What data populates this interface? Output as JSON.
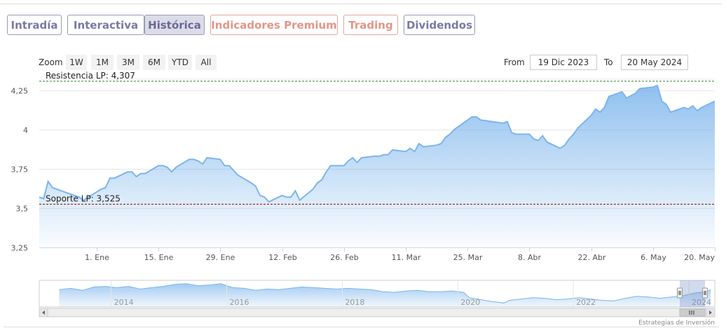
{
  "tabs": [
    {
      "label": "Intradía",
      "style": "normal"
    },
    {
      "label": "Interactiva",
      "style": "normal"
    },
    {
      "label": "Histórica",
      "style": "active"
    },
    {
      "label": "Indicadores Premium",
      "style": "premium"
    },
    {
      "label": "Trading",
      "style": "premium"
    },
    {
      "label": "Dividendos",
      "style": "normal"
    }
  ],
  "zoom": {
    "label": "Zoom",
    "buttons": [
      "1W",
      "1M",
      "3M",
      "6M",
      "YTD",
      "All"
    ]
  },
  "range": {
    "from_label": "From",
    "from_value": "19 Dic 2023",
    "to_label": "To",
    "to_value": "20 May 2024"
  },
  "credit": "Estrategias de Inversión",
  "colors": {
    "line": "#7cb5ec",
    "area_top": "#7cb5ec",
    "resistance": "#2e7d32",
    "support": "#a00000",
    "tab_border": "#9a9ab8",
    "tab_text": "#7a7aa6",
    "premium": "#e3968a",
    "navigator_mask": "#ccd6eb"
  },
  "chart_data": {
    "type": "area",
    "title": "",
    "xlabel": "",
    "ylabel": "",
    "ylim": [
      3.25,
      4.32
    ],
    "xlim": [
      "2023-12-19",
      "2024-05-20"
    ],
    "yticks": [
      3.25,
      3.5,
      3.75,
      4,
      4.25
    ],
    "ytick_labels": [
      "3,25",
      "3,5",
      "3,75",
      "4",
      "4,25"
    ],
    "xticks": [
      {
        "date": "2024-01-01",
        "label": "1. Ene"
      },
      {
        "date": "2024-01-15",
        "label": "15. Ene"
      },
      {
        "date": "2024-01-29",
        "label": "29. Ene"
      },
      {
        "date": "2024-02-12",
        "label": "12. Feb"
      },
      {
        "date": "2024-02-26",
        "label": "26. Feb"
      },
      {
        "date": "2024-03-11",
        "label": "11. Mar"
      },
      {
        "date": "2024-03-25",
        "label": "25. Mar"
      },
      {
        "date": "2024-04-08",
        "label": "8. Abr"
      },
      {
        "date": "2024-04-22",
        "label": "22. Abr"
      },
      {
        "date": "2024-05-06",
        "label": "6. May"
      },
      {
        "date": "2024-05-20",
        "label": "20. May"
      }
    ],
    "reference_lines": [
      {
        "label": "Resistencia LP: 4,307",
        "value": 4.307,
        "style": "dashed-green"
      },
      {
        "label": "Soporte LP: 3,525",
        "value": 3.525,
        "style": "dashed-red"
      }
    ],
    "grid": true,
    "series": [
      {
        "points": [
          [
            "2023-12-19",
            3.57
          ],
          [
            "2023-12-20",
            3.56
          ],
          [
            "2023-12-21",
            3.67
          ],
          [
            "2023-12-22",
            3.63
          ],
          [
            "2023-12-27",
            3.58
          ],
          [
            "2023-12-28",
            3.57
          ],
          [
            "2023-12-29",
            3.55
          ],
          [
            "2024-01-02",
            3.62
          ],
          [
            "2024-01-03",
            3.63
          ],
          [
            "2024-01-04",
            3.69
          ],
          [
            "2024-01-05",
            3.69
          ],
          [
            "2024-01-08",
            3.73
          ],
          [
            "2024-01-09",
            3.73
          ],
          [
            "2024-01-10",
            3.7
          ],
          [
            "2024-01-11",
            3.72
          ],
          [
            "2024-01-12",
            3.72
          ],
          [
            "2024-01-15",
            3.77
          ],
          [
            "2024-01-16",
            3.77
          ],
          [
            "2024-01-17",
            3.76
          ],
          [
            "2024-01-18",
            3.73
          ],
          [
            "2024-01-19",
            3.76
          ],
          [
            "2024-01-22",
            3.81
          ],
          [
            "2024-01-23",
            3.81
          ],
          [
            "2024-01-24",
            3.8
          ],
          [
            "2024-01-25",
            3.78
          ],
          [
            "2024-01-26",
            3.82
          ],
          [
            "2024-01-29",
            3.81
          ],
          [
            "2024-01-30",
            3.77
          ],
          [
            "2024-01-31",
            3.77
          ],
          [
            "2024-02-01",
            3.74
          ],
          [
            "2024-02-02",
            3.71
          ],
          [
            "2024-02-05",
            3.66
          ],
          [
            "2024-02-06",
            3.64
          ],
          [
            "2024-02-07",
            3.58
          ],
          [
            "2024-02-08",
            3.57
          ],
          [
            "2024-02-09",
            3.54
          ],
          [
            "2024-02-12",
            3.58
          ],
          [
            "2024-02-13",
            3.57
          ],
          [
            "2024-02-14",
            3.57
          ],
          [
            "2024-02-15",
            3.61
          ],
          [
            "2024-02-16",
            3.55
          ],
          [
            "2024-02-19",
            3.62
          ],
          [
            "2024-02-20",
            3.66
          ],
          [
            "2024-02-21",
            3.68
          ],
          [
            "2024-02-22",
            3.73
          ],
          [
            "2024-02-23",
            3.77
          ],
          [
            "2024-02-26",
            3.77
          ],
          [
            "2024-02-27",
            3.8
          ],
          [
            "2024-02-28",
            3.82
          ],
          [
            "2024-02-29",
            3.79
          ],
          [
            "2024-03-01",
            3.82
          ],
          [
            "2024-03-04",
            3.83
          ],
          [
            "2024-03-05",
            3.83
          ],
          [
            "2024-03-06",
            3.84
          ],
          [
            "2024-03-07",
            3.84
          ],
          [
            "2024-03-08",
            3.87
          ],
          [
            "2024-03-11",
            3.86
          ],
          [
            "2024-03-12",
            3.88
          ],
          [
            "2024-03-13",
            3.86
          ],
          [
            "2024-03-14",
            3.91
          ],
          [
            "2024-03-15",
            3.89
          ],
          [
            "2024-03-18",
            3.9
          ],
          [
            "2024-03-19",
            3.91
          ],
          [
            "2024-03-20",
            3.95
          ],
          [
            "2024-03-21",
            3.97
          ],
          [
            "2024-03-22",
            4.0
          ],
          [
            "2024-03-25",
            4.06
          ],
          [
            "2024-03-26",
            4.08
          ],
          [
            "2024-03-27",
            4.08
          ],
          [
            "2024-03-28",
            4.06
          ],
          [
            "2024-04-02",
            4.04
          ],
          [
            "2024-04-03",
            4.05
          ],
          [
            "2024-04-04",
            3.98
          ],
          [
            "2024-04-05",
            3.97
          ],
          [
            "2024-04-08",
            3.97
          ],
          [
            "2024-04-09",
            3.94
          ],
          [
            "2024-04-10",
            3.93
          ],
          [
            "2024-04-11",
            3.96
          ],
          [
            "2024-04-12",
            3.92
          ],
          [
            "2024-04-15",
            3.88
          ],
          [
            "2024-04-16",
            3.9
          ],
          [
            "2024-04-17",
            3.94
          ],
          [
            "2024-04-18",
            3.97
          ],
          [
            "2024-04-19",
            4.01
          ],
          [
            "2024-04-22",
            4.09
          ],
          [
            "2024-04-23",
            4.13
          ],
          [
            "2024-04-24",
            4.11
          ],
          [
            "2024-04-25",
            4.14
          ],
          [
            "2024-04-26",
            4.21
          ],
          [
            "2024-04-29",
            4.24
          ],
          [
            "2024-04-30",
            4.2
          ],
          [
            "2024-05-02",
            4.23
          ],
          [
            "2024-05-03",
            4.26
          ],
          [
            "2024-05-06",
            4.27
          ],
          [
            "2024-05-07",
            4.28
          ],
          [
            "2024-05-08",
            4.18
          ],
          [
            "2024-05-09",
            4.16
          ],
          [
            "2024-05-10",
            4.11
          ],
          [
            "2024-05-13",
            4.14
          ],
          [
            "2024-05-14",
            4.13
          ],
          [
            "2024-05-15",
            4.15
          ],
          [
            "2024-05-16",
            4.12
          ],
          [
            "2024-05-17",
            4.14
          ],
          [
            "2024-05-20",
            4.18
          ]
        ]
      }
    ],
    "navigator": {
      "year_labels": [
        "2014",
        "2016",
        "2018",
        "2020",
        "2022",
        "2024"
      ],
      "xlim": [
        2012.9,
        2024.4
      ],
      "ylim": [
        1.5,
        5.5
      ],
      "selected_range": [
        "2023-12-19",
        "2024-05-20"
      ],
      "points": [
        [
          2013.1,
          4.1
        ],
        [
          2013.3,
          4.3
        ],
        [
          2013.5,
          4.0
        ],
        [
          2013.7,
          4.5
        ],
        [
          2013.9,
          4.6
        ],
        [
          2014.1,
          4.4
        ],
        [
          2014.3,
          4.6
        ],
        [
          2014.5,
          4.2
        ],
        [
          2014.7,
          4.4
        ],
        [
          2014.9,
          4.6
        ],
        [
          2015.1,
          4.9
        ],
        [
          2015.3,
          5.0
        ],
        [
          2015.5,
          4.7
        ],
        [
          2015.7,
          4.8
        ],
        [
          2015.9,
          5.0
        ],
        [
          2016.1,
          4.4
        ],
        [
          2016.3,
          4.3
        ],
        [
          2016.5,
          4.0
        ],
        [
          2016.7,
          4.2
        ],
        [
          2016.9,
          4.1
        ],
        [
          2017.1,
          4.3
        ],
        [
          2017.3,
          4.5
        ],
        [
          2017.5,
          4.4
        ],
        [
          2017.7,
          4.3
        ],
        [
          2017.9,
          4.2
        ],
        [
          2018.1,
          4.3
        ],
        [
          2018.3,
          4.2
        ],
        [
          2018.5,
          4.1
        ],
        [
          2018.7,
          3.8
        ],
        [
          2018.9,
          3.7
        ],
        [
          2019.1,
          3.9
        ],
        [
          2019.3,
          4.0
        ],
        [
          2019.5,
          3.8
        ],
        [
          2019.7,
          3.8
        ],
        [
          2019.9,
          3.9
        ],
        [
          2020.1,
          3.7
        ],
        [
          2020.2,
          2.9
        ],
        [
          2020.4,
          2.6
        ],
        [
          2020.6,
          2.3
        ],
        [
          2020.8,
          2.1
        ],
        [
          2020.9,
          2.5
        ],
        [
          2021.1,
          2.7
        ],
        [
          2021.3,
          2.9
        ],
        [
          2021.5,
          2.8
        ],
        [
          2021.7,
          2.6
        ],
        [
          2021.9,
          2.7
        ],
        [
          2022.1,
          2.9
        ],
        [
          2022.3,
          2.7
        ],
        [
          2022.5,
          2.5
        ],
        [
          2022.7,
          2.4
        ],
        [
          2022.9,
          2.8
        ],
        [
          2023.1,
          3.1
        ],
        [
          2023.3,
          3.0
        ],
        [
          2023.5,
          2.8
        ],
        [
          2023.7,
          3.0
        ],
        [
          2023.9,
          3.2
        ],
        [
          2024.1,
          3.6
        ],
        [
          2024.3,
          3.8
        ],
        [
          2024.38,
          4.1
        ]
      ]
    }
  }
}
